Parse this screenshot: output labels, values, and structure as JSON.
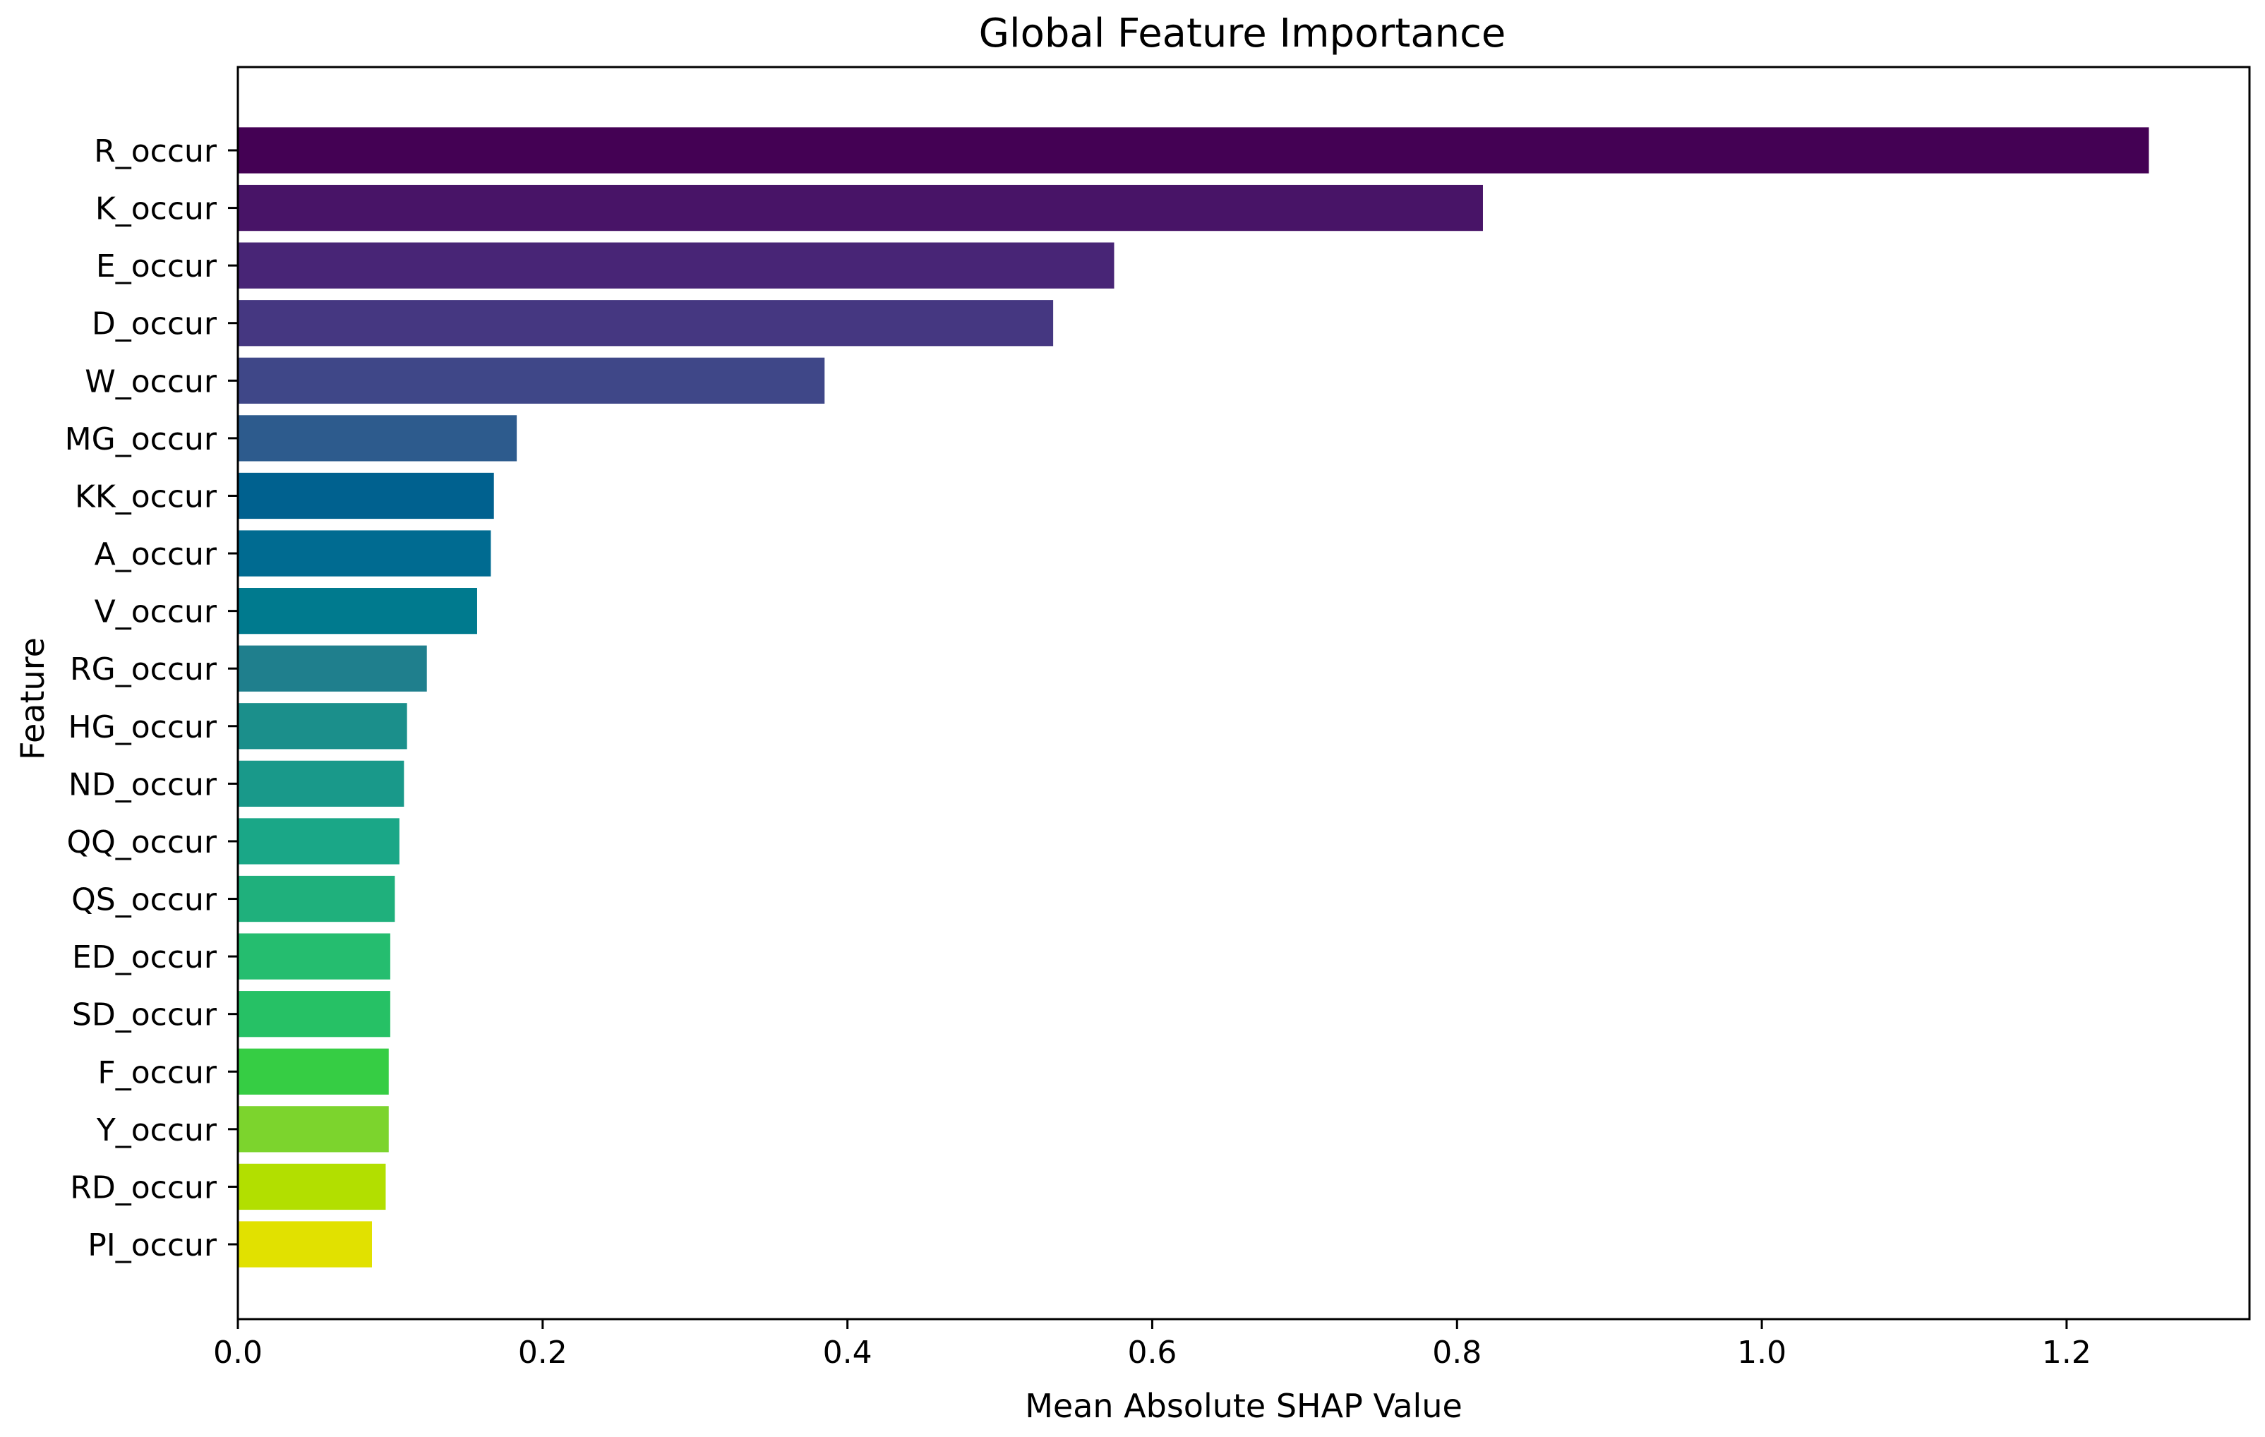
{
  "chart_data": {
    "type": "bar",
    "orientation": "horizontal",
    "title": "Global Feature Importance",
    "xlabel": "Mean Absolute SHAP Value",
    "ylabel": "Feature",
    "xlim": [
      0,
      1.32
    ],
    "xticks": [
      0.0,
      0.2,
      0.4,
      0.6,
      0.8,
      1.0,
      1.2
    ],
    "xtick_labels": [
      "0.0",
      "0.2",
      "0.4",
      "0.6",
      "0.8",
      "1.0",
      "1.2"
    ],
    "grid": false,
    "colormap": "viridis",
    "categories": [
      "R_occur",
      "K_occur",
      "E_occur",
      "D_occur",
      "W_occur",
      "MG_occur",
      "KK_occur",
      "A_occur",
      "V_occur",
      "RG_occur",
      "HG_occur",
      "ND_occur",
      "QQ_occur",
      "QS_occur",
      "ED_occur",
      "SD_occur",
      "F_occur",
      "Y_occur",
      "RD_occur",
      "PI_occur"
    ],
    "values": [
      1.254,
      0.817,
      0.575,
      0.535,
      0.385,
      0.183,
      0.168,
      0.166,
      0.157,
      0.124,
      0.111,
      0.109,
      0.106,
      0.103,
      0.1,
      0.1,
      0.099,
      0.099,
      0.097,
      0.088
    ],
    "colors": [
      "#440154",
      "#481467",
      "#482576",
      "#453781",
      "#3f4788",
      "#2d5b8d",
      "#00618f",
      "#006b91",
      "#007a8e",
      "#1f7f8d",
      "#1b8f8b",
      "#19998a",
      "#1aa787",
      "#1fb07c",
      "#25bd6f",
      "#26c165",
      "#36cd44",
      "#7cd42d",
      "#b2df00",
      "#e1e100"
    ]
  }
}
